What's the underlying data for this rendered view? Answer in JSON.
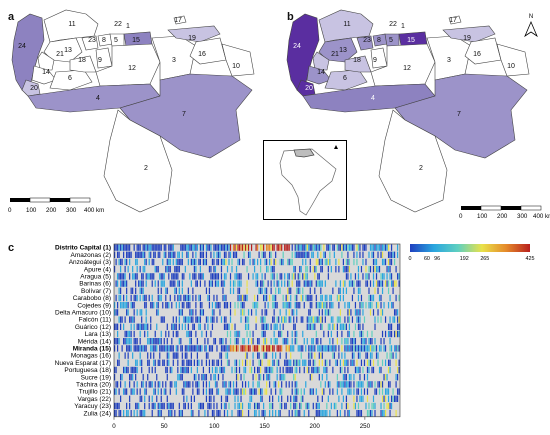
{
  "panels": {
    "a": {
      "label": "a"
    },
    "b": {
      "label": "b"
    },
    "c": {
      "label": "c"
    }
  },
  "map_numbers": [
    "1",
    "2",
    "3",
    "4",
    "5",
    "6",
    "7",
    "8",
    "9",
    "10",
    "11",
    "12",
    "13",
    "14",
    "15",
    "16",
    "17",
    "18",
    "19",
    "20",
    "21",
    "22",
    "23",
    "24"
  ],
  "scalebar": {
    "ticks": [
      "0",
      "100",
      "200",
      "300",
      "400 km"
    ]
  },
  "north": {
    "label": "N"
  },
  "heatmap": {
    "rows": [
      {
        "label": "Distrito Capital (1)",
        "bold": true
      },
      {
        "label": "Amazonas (2)",
        "bold": false
      },
      {
        "label": "Anzoátegui (3)",
        "bold": false
      },
      {
        "label": "Apure (4)",
        "bold": false
      },
      {
        "label": "Aragua (5)",
        "bold": false
      },
      {
        "label": "Barinas (6)",
        "bold": false
      },
      {
        "label": "Bolívar (7)",
        "bold": false
      },
      {
        "label": "Carabobo (8)",
        "bold": false
      },
      {
        "label": "Cojedes (9)",
        "bold": false
      },
      {
        "label": "Delta Amacuro (10)",
        "bold": false
      },
      {
        "label": "Falcón (11)",
        "bold": false
      },
      {
        "label": "Guárico (12)",
        "bold": false
      },
      {
        "label": "Lara (13)",
        "bold": false
      },
      {
        "label": "Mérida (14)",
        "bold": false
      },
      {
        "label": "Miranda (15)",
        "bold": true
      },
      {
        "label": "Monagas (16)",
        "bold": false
      },
      {
        "label": "Nueva Esparat (17)",
        "bold": false
      },
      {
        "label": "Portuguesa (18)",
        "bold": false
      },
      {
        "label": "Sucre (19)",
        "bold": false
      },
      {
        "label": "Táchira (20)",
        "bold": false
      },
      {
        "label": "Trujillo (21)",
        "bold": false
      },
      {
        "label": "Vargas (22)",
        "bold": false
      },
      {
        "label": "Yaracuy (23)",
        "bold": false
      },
      {
        "label": "Zulia (24)",
        "bold": false
      }
    ],
    "x_ticks": [
      "0",
      "50",
      "100",
      "150",
      "200",
      "250"
    ],
    "x_range": [
      0,
      285
    ],
    "colorbar": {
      "ticks": [
        "0",
        "60",
        "96",
        "192",
        "265",
        "425"
      ],
      "colors": [
        "#1f3fbf",
        "#2aa6df",
        "#5fd0c0",
        "#e9e24a",
        "#e58a2a",
        "#b8201e"
      ]
    }
  },
  "colors": {
    "unfilled": "#d9d9d9",
    "border": "#444444"
  }
}
